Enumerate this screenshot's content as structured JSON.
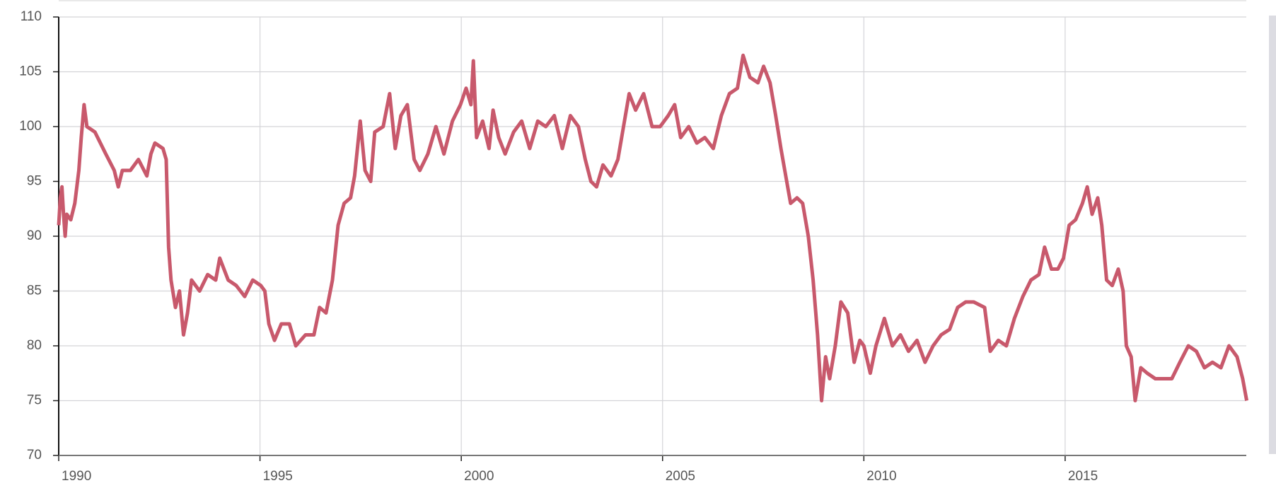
{
  "chart_data": {
    "type": "line",
    "x": [
      1990.0,
      1990.04,
      1990.08,
      1990.12,
      1990.16,
      1990.2,
      1990.3,
      1990.4,
      1990.5,
      1990.56,
      1990.63,
      1990.7,
      1990.9,
      1991.17,
      1991.38,
      1991.48,
      1991.58,
      1991.78,
      1991.98,
      1992.19,
      1992.29,
      1992.39,
      1992.59,
      1992.67,
      1992.73,
      1992.79,
      1992.9,
      1993.0,
      1993.1,
      1993.2,
      1993.3,
      1993.5,
      1993.7,
      1993.9,
      1994.0,
      1994.21,
      1994.41,
      1994.62,
      1994.82,
      1995.02,
      1995.12,
      1995.22,
      1995.36,
      1995.53,
      1995.73,
      1995.89,
      1996.13,
      1996.34,
      1996.48,
      1996.64,
      1996.8,
      1996.94,
      1997.09,
      1997.25,
      1997.35,
      1997.49,
      1997.61,
      1997.75,
      1997.85,
      1998.06,
      1998.22,
      1998.36,
      1998.5,
      1998.66,
      1998.83,
      1998.97,
      1999.17,
      1999.37,
      1999.57,
      1999.78,
      1999.98,
      2000.12,
      2000.24,
      2000.3,
      2000.38,
      2000.53,
      2000.69,
      2000.79,
      2000.93,
      2001.09,
      2001.3,
      2001.5,
      2001.7,
      2001.9,
      2002.1,
      2002.31,
      2002.51,
      2002.71,
      2002.91,
      2003.08,
      2003.22,
      2003.36,
      2003.52,
      2003.72,
      2003.89,
      2004.03,
      2004.17,
      2004.33,
      2004.53,
      2004.74,
      2004.94,
      2005.14,
      2005.3,
      2005.45,
      2005.65,
      2005.85,
      2006.05,
      2006.26,
      2006.46,
      2006.66,
      2006.86,
      2007.0,
      2007.17,
      2007.37,
      2007.51,
      2007.67,
      2007.81,
      2007.94,
      2008.06,
      2008.18,
      2008.34,
      2008.48,
      2008.62,
      2008.74,
      2008.85,
      2008.95,
      2009.05,
      2009.15,
      2009.29,
      2009.43,
      2009.6,
      2009.76,
      2009.9,
      2010.0,
      2010.16,
      2010.3,
      2010.51,
      2010.71,
      2010.91,
      2011.11,
      2011.32,
      2011.52,
      2011.72,
      2011.92,
      2012.13,
      2012.33,
      2012.53,
      2012.73,
      2013.0,
      2013.14,
      2013.34,
      2013.54,
      2013.74,
      2013.95,
      2014.15,
      2014.35,
      2014.49,
      2014.66,
      2014.82,
      2014.96,
      2015.1,
      2015.26,
      2015.43,
      2015.55,
      2015.67,
      2015.81,
      2015.91,
      2016.03,
      2016.17,
      2016.32,
      2016.44,
      2016.52,
      2016.64,
      2016.74,
      2016.88,
      2017.04,
      2017.24,
      2017.45,
      2017.65,
      2017.85,
      2018.06,
      2018.26,
      2018.46,
      2018.66,
      2018.87,
      2019.07,
      2019.27,
      2019.41,
      2019.51
    ],
    "series": [
      {
        "color": "#c8596c",
        "values": [
          91,
          93.5,
          94.5,
          92,
          90,
          92,
          91.5,
          93,
          96,
          99,
          102,
          100,
          99.5,
          97.5,
          96,
          94.5,
          96,
          96,
          97,
          95.5,
          97.5,
          98.5,
          98,
          97,
          89,
          86,
          83.5,
          85,
          81,
          83,
          86,
          85,
          86.5,
          86,
          88,
          86,
          85.5,
          84.5,
          86,
          85.5,
          85,
          82,
          80.5,
          82,
          82,
          80,
          81,
          81,
          83.5,
          83,
          86,
          91,
          93,
          93.5,
          95.5,
          100.5,
          96,
          95,
          99.5,
          100,
          103,
          98,
          101,
          102,
          97,
          96,
          97.5,
          100,
          97.5,
          100.5,
          102,
          103.5,
          102,
          106,
          99,
          100.5,
          98,
          101.5,
          99,
          97.5,
          99.5,
          100.5,
          98,
          100.5,
          100,
          101,
          98,
          101,
          100,
          97,
          95,
          94.5,
          96.5,
          95.5,
          97,
          100,
          103,
          101.5,
          103,
          100,
          100,
          101,
          102,
          99,
          100,
          98.5,
          99,
          98,
          101,
          103,
          103.5,
          106.5,
          104.5,
          104,
          105.5,
          104,
          101,
          98,
          95.5,
          93,
          93.5,
          93,
          90,
          86,
          81,
          75,
          79,
          77,
          80,
          84,
          83,
          78.5,
          80.5,
          80,
          77.5,
          80,
          82.5,
          80,
          81,
          79.5,
          80.5,
          78.5,
          80,
          81,
          81.5,
          83.5,
          84,
          84,
          83.5,
          79.5,
          80.5,
          80,
          82.5,
          84.5,
          86,
          86.5,
          89,
          87,
          87,
          88,
          91,
          91.5,
          93,
          94.5,
          92,
          93.5,
          91,
          86,
          85.5,
          87,
          85,
          80,
          79,
          75,
          78,
          77.5,
          77,
          77,
          77,
          78.5,
          80,
          79.5,
          78,
          78.5,
          78,
          80,
          79,
          77,
          75
        ]
      }
    ],
    "xlim": [
      1990,
      2019.5
    ],
    "xticks": [
      1990,
      1995,
      2000,
      2005,
      2010,
      2015
    ],
    "ylim": [
      70,
      110
    ],
    "yticks": [
      70,
      75,
      80,
      85,
      90,
      95,
      100,
      105,
      110
    ],
    "grid": true
  }
}
